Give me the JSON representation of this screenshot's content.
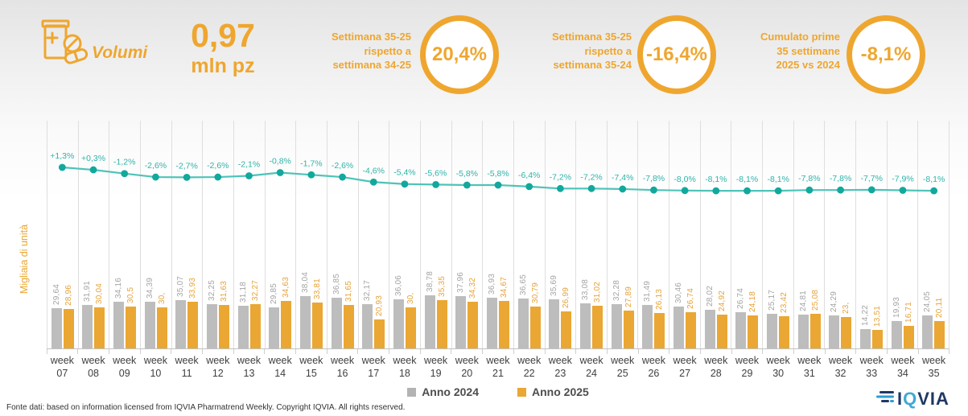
{
  "header": {
    "brand": {
      "icon": "pills-icon",
      "label": "Volumi"
    },
    "stat": {
      "value": "0,97",
      "unit": "mln pz"
    },
    "kpis": [
      {
        "lines": [
          "Settimana 35-25",
          "rispetto a",
          "settimana 34-25"
        ],
        "value": "20,4%"
      },
      {
        "lines": [
          "Settimana 35-25",
          "rispetto a",
          "settimana 35-24"
        ],
        "value": "-16,4%"
      },
      {
        "lines": [
          "Cumulato prime",
          "35 settimane",
          "2025 vs 2024"
        ],
        "value": "-8,1%"
      }
    ]
  },
  "chart_data": {
    "type": "bar",
    "subtype": "grouped bars with weekly % variation line",
    "title": "",
    "xlabel": "",
    "ylabel": "Migliaia di unità",
    "grid": "vertical column separators",
    "category_prefix": "week",
    "categories": [
      "07",
      "08",
      "09",
      "10",
      "11",
      "12",
      "13",
      "14",
      "15",
      "16",
      "17",
      "18",
      "19",
      "20",
      "21",
      "22",
      "23",
      "24",
      "25",
      "26",
      "27",
      "28",
      "29",
      "30",
      "31",
      "32",
      "33",
      "34",
      "35"
    ],
    "series": [
      {
        "name": "Anno 2024",
        "color": "#bdbdbd",
        "values": [
          29.64,
          31.91,
          34.16,
          34.39,
          35.07,
          32.25,
          31.18,
          29.85,
          38.04,
          36.85,
          32.17,
          36.06,
          38.78,
          37.96,
          36.93,
          36.65,
          35.69,
          33.08,
          32.28,
          31.49,
          30.46,
          28.02,
          26.74,
          25.17,
          24.81,
          24.29,
          14.22,
          19.93,
          24.05
        ],
        "labels": [
          "29,64",
          "31,91",
          "34,16",
          "34,39",
          "35,07",
          "32,25",
          "31,18",
          "29,85",
          "38,04",
          "36,85",
          "32,17",
          "36,06",
          "38,78",
          "37,96",
          "36,93",
          "36,65",
          "35,69",
          "33,08",
          "32,28",
          "31,49",
          "30,46",
          "28,02",
          "26,74",
          "25,17",
          "24,81",
          "24,29",
          "14,22",
          "19,93",
          "24,05"
        ]
      },
      {
        "name": "Anno 2025",
        "color": "#eaa733",
        "values": [
          28.96,
          30.04,
          30.5,
          30.0,
          33.93,
          31.63,
          32.27,
          34.63,
          33.81,
          31.65,
          20.93,
          30.0,
          35.35,
          34.32,
          34.67,
          30.79,
          26.99,
          31.02,
          27.89,
          26.13,
          26.74,
          24.92,
          24.18,
          23.42,
          25.08,
          23.0,
          13.51,
          16.71,
          20.11
        ],
        "labels": [
          "28,96",
          "30,04",
          "30,5",
          "30,",
          "33,93",
          "31,63",
          "32,27",
          "34,63",
          "33,81",
          "31,65",
          "20,93",
          "30,",
          "35,35",
          "34,32",
          "34,67",
          "30,79",
          "26,99",
          "31,02",
          "27,89",
          "26,13",
          "26,74",
          "24,92",
          "24,18",
          "23,42",
          "25,08",
          "23,",
          "13,51",
          "16,71",
          "20,11"
        ]
      }
    ],
    "line_series": {
      "color": "#4fc3b8",
      "marker_color": "#12a89d",
      "label_color": "#2fb3a9",
      "values": [
        1.3,
        0.3,
        -1.2,
        -2.6,
        -2.7,
        -2.6,
        -2.1,
        -0.8,
        -1.7,
        -2.6,
        -4.6,
        -5.4,
        -5.6,
        -5.8,
        -5.8,
        -6.4,
        -7.2,
        -7.2,
        -7.4,
        -7.8,
        -8.0,
        -8.1,
        -8.1,
        -8.1,
        -7.8,
        -7.8,
        -7.7,
        -7.9,
        -8.1
      ],
      "labels": [
        "+1,3%",
        "+0,3%",
        "-1,2%",
        "-2,6%",
        "-2,7%",
        "-2,6%",
        "-2,1%",
        "-0,8%",
        "-1,7%",
        "-2,6%",
        "-4,6%",
        "-5,4%",
        "-5,6%",
        "-5,8%",
        "-5,8%",
        "-6,4%",
        "-7,2%",
        "-7,2%",
        "-7,4%",
        "-7,8%",
        "-8,0%",
        "-8,1%",
        "-8,1%",
        "-8,1%",
        "-7,8%",
        "-7,8%",
        "-7,7%",
        "-7,9%",
        "-8,1%"
      ]
    },
    "legend": {
      "position": "bottom",
      "items": [
        "Anno 2024",
        "Anno 2025"
      ]
    }
  },
  "footer": {
    "source": "Fonte dati: based on information licensed from IQVIA Pharmatrend Weekly. Copyright IQVIA. All rights reserved.",
    "logo": {
      "first": "I",
      "q": "Q",
      "rest": "VIA"
    }
  },
  "colors": {
    "accent_orange": "#efa62f",
    "bar_2024": "#bdbdbd",
    "bar_2025": "#eaa733",
    "trend_line": "#4fc3b8",
    "trend_marker": "#12a89d",
    "trend_label": "#2fb3a9",
    "logo_navy": "#1f3864",
    "logo_blue": "#2e9bd6"
  }
}
